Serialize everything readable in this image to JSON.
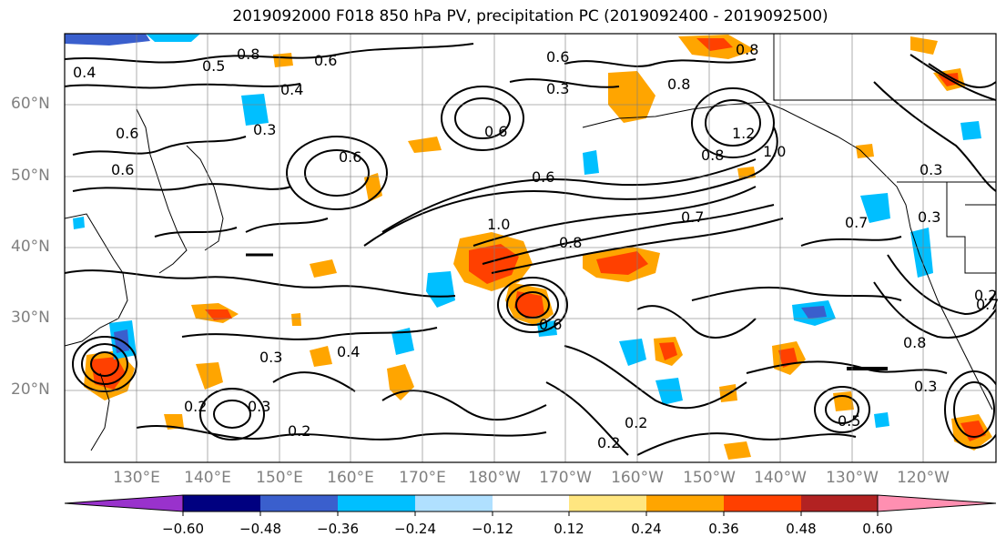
{
  "title": "2019092000 F018 850 hPa PV, precipitation PC (2019092400 - 2019092500)",
  "lat_labels": [
    "60°N",
    "50°N",
    "40°N",
    "30°N",
    "20°N"
  ],
  "lon_labels": [
    "130°E",
    "140°E",
    "150°E",
    "160°E",
    "170°E",
    "180°W",
    "170°W",
    "160°W",
    "150°W",
    "140°W",
    "130°W",
    "120°W"
  ],
  "contour_labels": [
    "0.8",
    "0.8",
    "0.6",
    "0.6",
    "0.5",
    "0.4",
    "0.4",
    "0.3",
    "0.3",
    "0.6",
    "0.6",
    "0.6",
    "0.6",
    "0.8",
    "1.2",
    "1.0",
    "0.8",
    "0.6",
    "1.0",
    "0.8",
    "0.7",
    "0.7",
    "0.3",
    "0.3",
    "0.8",
    "0.7",
    "0.2",
    "0.6",
    "0.4",
    "0.3",
    "0.2",
    "0.3",
    "0.2",
    "0.2",
    "0.2",
    "0.3",
    "0.5"
  ],
  "colorbar": {
    "ticks": [
      "−0.60",
      "−0.48",
      "−0.36",
      "−0.24",
      "−0.12",
      "0.12",
      "0.24",
      "0.36",
      "0.48",
      "0.60"
    ],
    "colors": [
      "#9932cc",
      "#000080",
      "#3a5fcd",
      "#00bfff",
      "#b0e0ff",
      "#ffffff",
      "#ffe680",
      "#ffa500",
      "#ff4000",
      "#b22222",
      "#ff8fb1"
    ]
  }
}
